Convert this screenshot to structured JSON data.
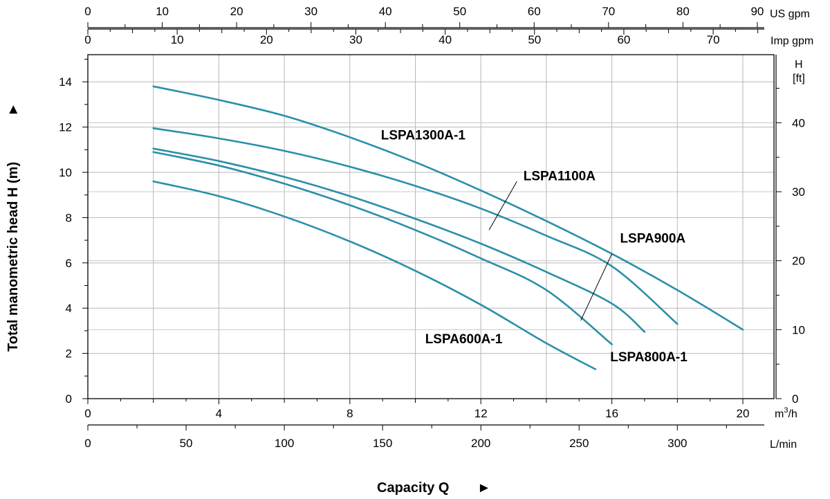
{
  "chart_data": {
    "type": "line",
    "x_axis": {
      "label": "Capacity Q",
      "arrow": "►",
      "unit": "m",
      "unit_sup": "3",
      "unit_rest": "/h",
      "range": [
        0,
        20.95
      ],
      "ticks": [
        0,
        4,
        8,
        12,
        16,
        20
      ],
      "tick_labels": [
        "0",
        "4",
        "8",
        "12",
        "16",
        "20"
      ]
    },
    "y_axis": {
      "label": "Total manometric head H (m)",
      "arrow": "►",
      "range": [
        0,
        15.2
      ],
      "ticks": [
        0,
        2,
        4,
        6,
        8,
        10,
        12,
        14
      ],
      "tick_labels": [
        "0",
        "2",
        "4",
        "6",
        "8",
        "10",
        "12",
        "14"
      ]
    },
    "secondary_axes": {
      "us_gpm": {
        "unit": "US gpm",
        "ticks": [
          0,
          10,
          20,
          30,
          40,
          50,
          60,
          70,
          80,
          90
        ],
        "tick_labels": [
          "0",
          "10",
          "20",
          "30",
          "40",
          "50",
          "60",
          "70",
          "80",
          "90"
        ]
      },
      "imp_gpm": {
        "unit": "Imp gpm",
        "ticks": [
          0,
          10,
          20,
          30,
          40,
          50,
          60,
          70
        ],
        "tick_labels": [
          "0",
          "10",
          "20",
          "30",
          "40",
          "50",
          "60",
          "70"
        ]
      },
      "l_min": {
        "unit": "L/min",
        "ticks": [
          0,
          50,
          100,
          150,
          200,
          250,
          300
        ],
        "tick_labels": [
          "0",
          "50",
          "100",
          "150",
          "200",
          "250",
          "300"
        ]
      },
      "h_ft": {
        "unit_line1": "H",
        "unit_line2": "[ft]",
        "ticks": [
          0,
          10,
          20,
          30,
          40
        ],
        "tick_labels": [
          "0",
          "10",
          "20",
          "30",
          "40"
        ]
      }
    },
    "grid": true,
    "series": [
      {
        "name": "LSPA1300A-1",
        "color": "#2a8fa8",
        "points": [
          [
            2,
            13.8
          ],
          [
            4,
            13.2
          ],
          [
            6,
            12.5
          ],
          [
            8,
            11.55
          ],
          [
            10,
            10.45
          ],
          [
            12,
            9.2
          ],
          [
            14,
            7.85
          ],
          [
            16,
            6.4
          ],
          [
            18,
            4.8
          ],
          [
            20,
            3.05
          ]
        ]
      },
      {
        "name": "LSPA1100A",
        "color": "#2a8fa8",
        "points": [
          [
            2,
            11.95
          ],
          [
            4,
            11.5
          ],
          [
            6,
            10.95
          ],
          [
            8,
            10.25
          ],
          [
            10,
            9.4
          ],
          [
            12,
            8.4
          ],
          [
            14,
            7.2
          ],
          [
            16,
            5.85
          ],
          [
            18,
            3.3
          ]
        ]
      },
      {
        "name": "LSPA900A",
        "color": "#2a8fa8",
        "points": [
          [
            2,
            11.05
          ],
          [
            4,
            10.5
          ],
          [
            6,
            9.8
          ],
          [
            8,
            8.95
          ],
          [
            10,
            7.95
          ],
          [
            12,
            6.85
          ],
          [
            14,
            5.6
          ],
          [
            16,
            4.2
          ],
          [
            17,
            2.95
          ]
        ]
      },
      {
        "name": "LSPA800A-1",
        "color": "#2a8fa8",
        "points": [
          [
            2,
            10.9
          ],
          [
            4,
            10.3
          ],
          [
            6,
            9.5
          ],
          [
            8,
            8.55
          ],
          [
            10,
            7.45
          ],
          [
            12,
            6.2
          ],
          [
            14,
            4.8
          ],
          [
            16,
            2.4
          ]
        ]
      },
      {
        "name": "LSPA600A-1",
        "color": "#2a8fa8",
        "points": [
          [
            2,
            9.6
          ],
          [
            4,
            8.95
          ],
          [
            6,
            8.05
          ],
          [
            8,
            6.95
          ],
          [
            10,
            5.65
          ],
          [
            12,
            4.15
          ],
          [
            14,
            2.45
          ],
          [
            15.5,
            1.3
          ]
        ]
      }
    ],
    "annotations": [
      {
        "series": "LSPA1300A-1",
        "text": "LSPA1300A-1",
        "at": [
          8.95,
          11.45
        ],
        "leader_from": null,
        "leader_to": null
      },
      {
        "series": "LSPA1100A",
        "text": "LSPA1100A",
        "at": [
          13.3,
          9.65
        ],
        "leader_from": [
          13.1,
          9.6
        ],
        "leader_to": [
          12.25,
          7.45
        ]
      },
      {
        "series": "LSPA900A",
        "text": "LSPA900A",
        "at": [
          16.25,
          6.9
        ],
        "leader_from": [
          16.0,
          6.4
        ],
        "leader_to": [
          15.05,
          3.45
        ]
      },
      {
        "series": "LSPA800A-1",
        "text": "LSPA800A-1",
        "at": [
          15.95,
          1.65
        ],
        "leader_from": null,
        "leader_to": null
      },
      {
        "series": "LSPA600A-1",
        "text": "LSPA600A-1",
        "at": [
          10.3,
          2.45
        ],
        "leader_from": null,
        "leader_to": null
      }
    ]
  }
}
